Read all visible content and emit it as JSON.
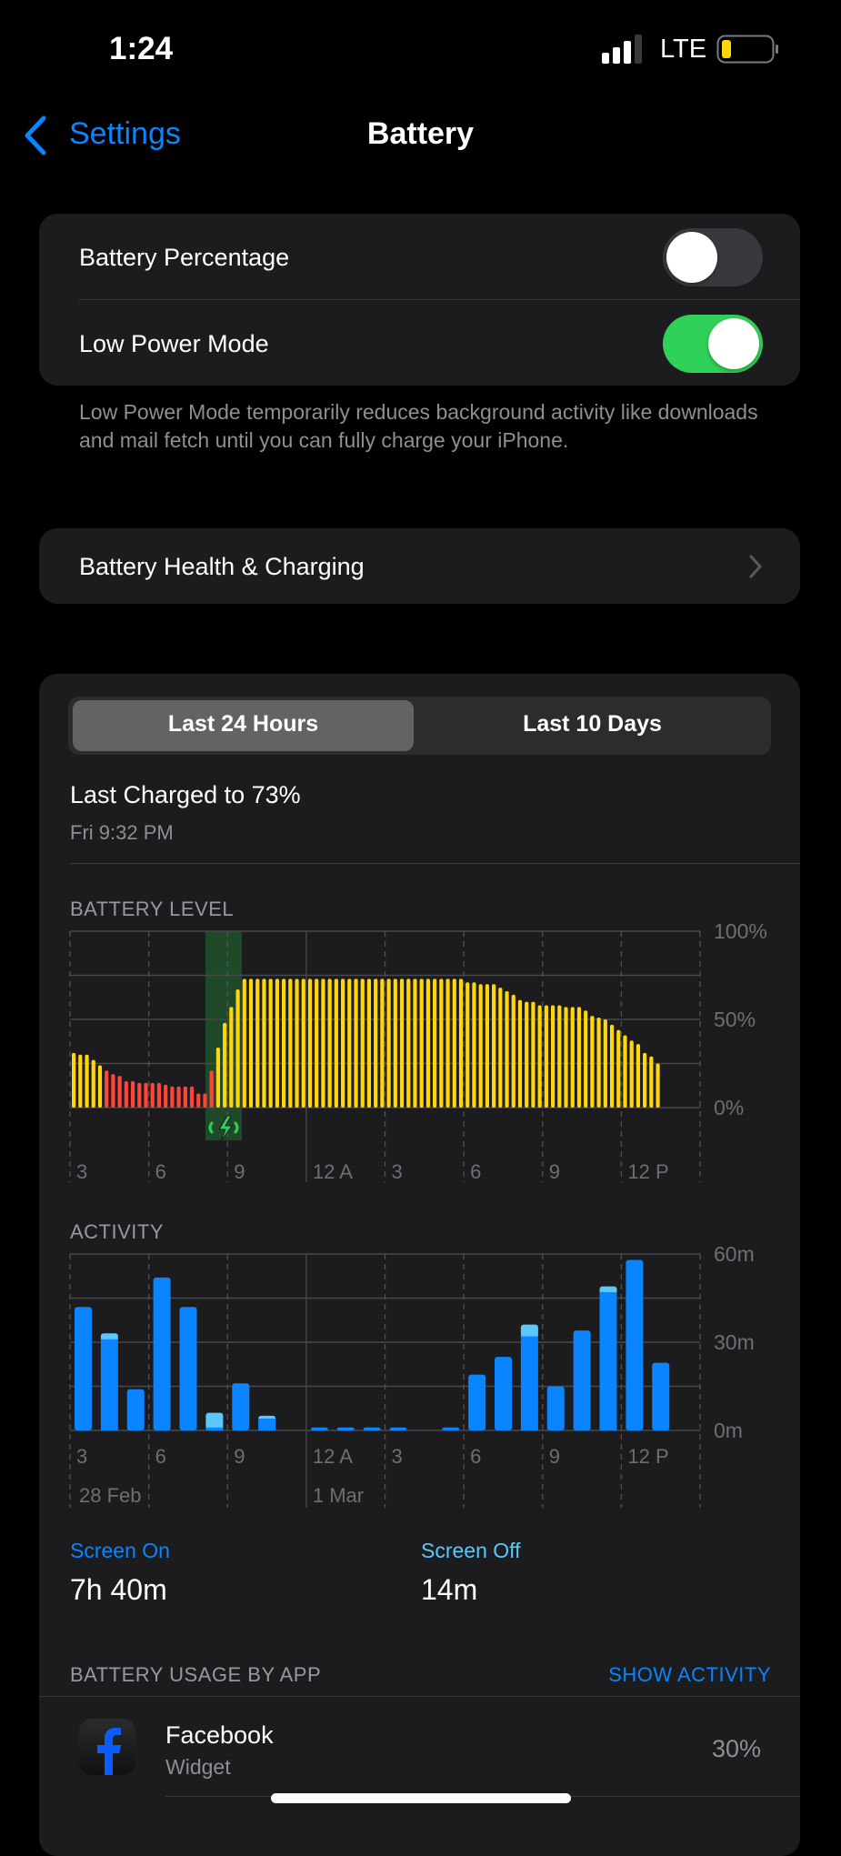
{
  "status_bar": {
    "time": "1:24",
    "network": "LTE",
    "signal_bars": 3,
    "battery_color": "#ffd60a"
  },
  "nav": {
    "back_label": "Settings",
    "title": "Battery"
  },
  "settings": {
    "battery_percentage": {
      "label": "Battery Percentage",
      "on": false
    },
    "low_power_mode": {
      "label": "Low Power Mode",
      "on": true
    },
    "footnote": "Low Power Mode temporarily reduces background activity like downloads and mail fetch until you can fully charge your iPhone."
  },
  "health": {
    "label": "Battery Health & Charging"
  },
  "segmented": {
    "options": [
      "Last 24 Hours",
      "Last 10 Days"
    ],
    "selected": 0
  },
  "last_charged": {
    "title": "Last Charged to 73%",
    "time": "Fri 9:32 PM"
  },
  "colors": {
    "accent": "#0a84ff",
    "toggle_on": "#30d158",
    "battery_normal": "#ffd60a",
    "battery_low": "#ff453a",
    "charging": "#30d158",
    "screen_on": "#0a84ff",
    "screen_off": "#5ac8fa"
  },
  "chart_data": [
    {
      "type": "bar",
      "title": "BATTERY LEVEL",
      "interval": "15 min",
      "ylim": [
        0,
        100
      ],
      "y_ticks": [
        "100%",
        "50%",
        "0%"
      ],
      "x_ticks": [
        "3",
        "6",
        "9",
        "12 A",
        "3",
        "6",
        "9",
        "12 P"
      ],
      "grid": true,
      "levels": [
        31,
        30,
        30,
        27,
        24,
        21,
        19,
        18,
        15,
        15,
        14,
        14,
        14,
        14,
        13,
        12,
        12,
        12,
        12,
        8,
        8,
        21,
        34,
        48,
        57,
        67,
        73,
        73,
        73,
        73,
        73,
        73,
        73,
        73,
        73,
        73,
        73,
        73,
        73,
        73,
        73,
        73,
        73,
        73,
        73,
        73,
        73,
        73,
        73,
        73,
        73,
        73,
        73,
        73,
        73,
        73,
        73,
        73,
        73,
        73,
        71,
        71,
        70,
        70,
        70,
        68,
        66,
        64,
        61,
        60,
        60,
        58,
        58,
        58,
        58,
        57,
        57,
        57,
        55,
        52,
        51,
        50,
        47,
        44,
        41,
        38,
        36,
        31,
        29,
        25
      ],
      "low_bars_range": [
        5,
        21
      ],
      "charging_period": "8 PM – 9 PM"
    },
    {
      "type": "bar",
      "title": "ACTIVITY",
      "stacked": true,
      "ylim": [
        0,
        60
      ],
      "y_ticks": [
        "60m",
        "30m",
        "0m"
      ],
      "x_ticks": [
        "3",
        "6",
        "9",
        "12 A",
        "3",
        "6",
        "9",
        "12 P"
      ],
      "date_labels": [
        "28 Feb",
        "1 Mar"
      ],
      "grid": true,
      "series": [
        {
          "name": "Screen On",
          "values": [
            42,
            31,
            14,
            52,
            42,
            1,
            16,
            4,
            0,
            1,
            1,
            1,
            1,
            0,
            1,
            19,
            25,
            32,
            15,
            34,
            47,
            58,
            23,
            0
          ]
        },
        {
          "name": "Screen Off",
          "values": [
            0,
            2,
            0,
            0,
            0,
            5,
            0,
            1,
            0,
            0,
            0,
            0,
            0,
            0,
            0,
            0,
            0,
            4,
            0,
            0,
            2,
            0,
            0,
            0
          ]
        }
      ]
    }
  ],
  "totals": {
    "screen_on_label": "Screen On",
    "screen_on": "7h 40m",
    "screen_off_label": "Screen Off",
    "screen_off": "14m"
  },
  "usage": {
    "header": "BATTERY USAGE BY APP",
    "action": "SHOW ACTIVITY",
    "apps": [
      {
        "name": "Facebook",
        "detail": "Widget",
        "percent": "30%",
        "icon": "facebook-icon"
      }
    ]
  }
}
